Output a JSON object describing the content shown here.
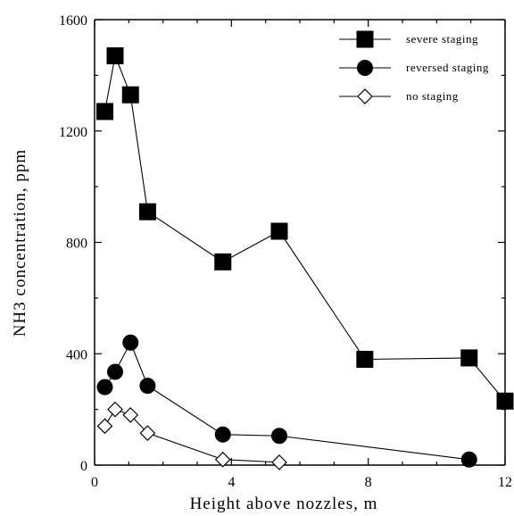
{
  "chart_data": {
    "type": "scatter",
    "xlabel": "Height above nozzles, m",
    "ylabel": "NH3 concentration, ppm",
    "xlim": [
      0,
      12
    ],
    "ylim": [
      0,
      1600
    ],
    "xticks": [
      0,
      4,
      8,
      12
    ],
    "yticks": [
      0,
      400,
      800,
      1200,
      1600
    ],
    "grid": false,
    "legend_position": "top-right",
    "series": [
      {
        "name": "severe staging",
        "marker": "filled-square",
        "color": "#000000",
        "x": [
          0.3,
          0.6,
          1.05,
          1.55,
          3.75,
          5.4,
          7.9,
          10.95,
          12.0
        ],
        "y": [
          1270,
          1470,
          1330,
          910,
          730,
          840,
          380,
          385,
          230
        ]
      },
      {
        "name": "reversed staging",
        "marker": "filled-circle",
        "color": "#000000",
        "x": [
          0.3,
          0.6,
          1.05,
          1.55,
          3.75,
          5.4,
          10.95
        ],
        "y": [
          280,
          335,
          440,
          285,
          110,
          105,
          20
        ]
      },
      {
        "name": "no staging",
        "marker": "open-diamond",
        "color": "#000000",
        "x": [
          0.3,
          0.6,
          1.05,
          1.55,
          3.75,
          5.4
        ],
        "y": [
          140,
          200,
          180,
          115,
          20,
          10
        ]
      }
    ]
  }
}
